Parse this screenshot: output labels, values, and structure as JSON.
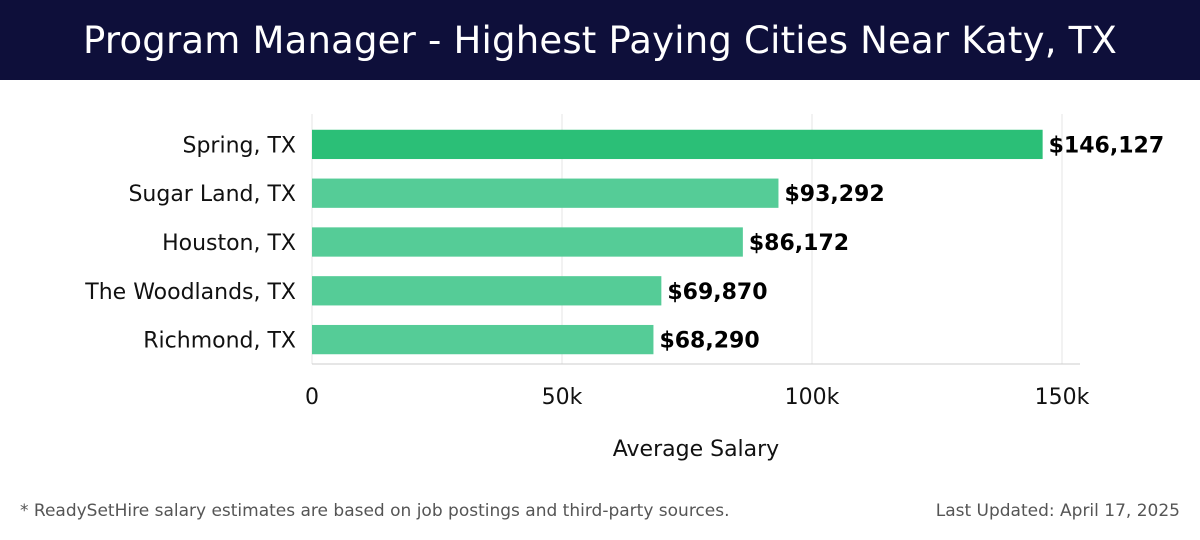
{
  "header": {
    "title": "Program Manager - Highest Paying Cities Near Katy, TX"
  },
  "chart_data": {
    "type": "bar",
    "orientation": "horizontal",
    "title": "Program Manager - Highest Paying Cities Near Katy, TX",
    "xlabel": "Average Salary",
    "ylabel": "",
    "categories": [
      "Spring, TX",
      "Sugar Land, TX",
      "Houston, TX",
      "The Woodlands, TX",
      "Richmond, TX"
    ],
    "values": [
      146127,
      93292,
      86172,
      69870,
      68290
    ],
    "value_labels": [
      "$146,127",
      "$93,292",
      "$86,172",
      "$69,870",
      "$68,290"
    ],
    "xlim": [
      0,
      150000
    ],
    "x_ticks": [
      0,
      50000,
      100000,
      150000
    ],
    "x_tick_labels": [
      "0",
      "50k",
      "100k",
      "150k"
    ],
    "grid": true,
    "colors": {
      "top_bar": "#2bbf77",
      "bar": "#55cc97",
      "grid": "#e4e4e4",
      "axis": "#cccccc",
      "header_bg": "#0e0f3a"
    }
  },
  "footer": {
    "note": "* ReadySetHire salary estimates are based on job postings and third-party sources.",
    "updated": "Last Updated: April 17, 2025"
  }
}
